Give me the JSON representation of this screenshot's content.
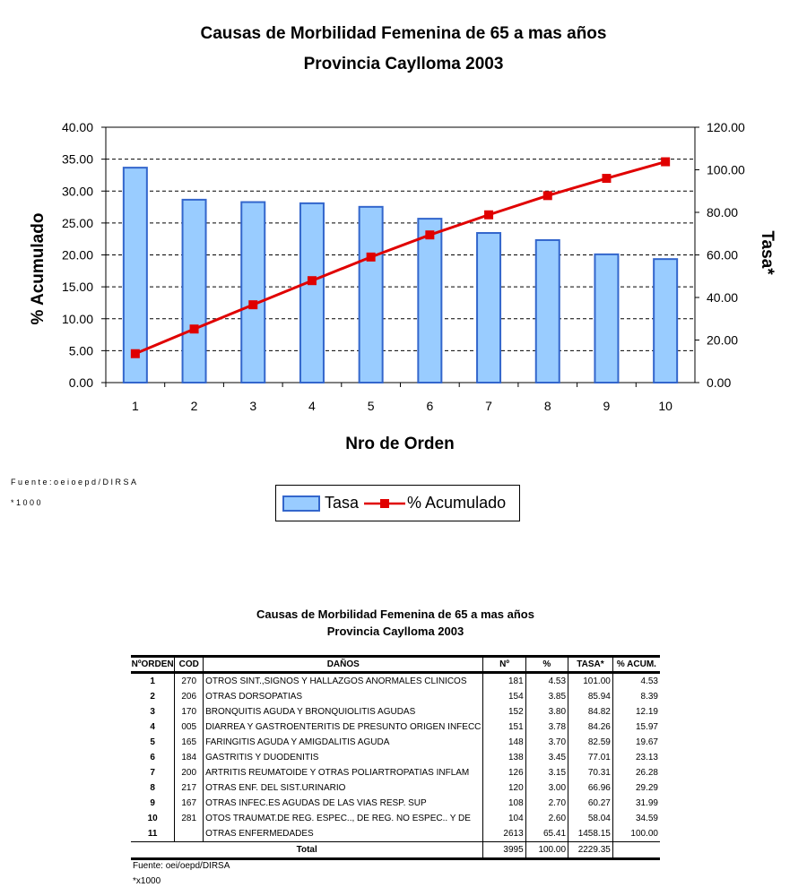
{
  "chart_data": {
    "type": "bar+line",
    "title": "Causas de Morbilidad Femenina de 65 a mas años",
    "subtitle": "Provincia Caylloma 2003",
    "xlabel": "Nro de Orden",
    "ylabel_left": "% Acumulado",
    "ylabel_right": "Tasa*",
    "categories": [
      "1",
      "2",
      "3",
      "4",
      "5",
      "6",
      "7",
      "8",
      "9",
      "10"
    ],
    "ylim_left": [
      0,
      40
    ],
    "yticks_left": [
      "0.00",
      "5.00",
      "10.00",
      "15.00",
      "20.00",
      "25.00",
      "30.00",
      "35.00",
      "40.00"
    ],
    "ylim_right": [
      0,
      120
    ],
    "yticks_right": [
      "0.00",
      "20.00",
      "40.00",
      "60.00",
      "80.00",
      "100.00",
      "120.00"
    ],
    "grid": "dashed horizontal",
    "legend_position": "bottom",
    "series": [
      {
        "name": "Tasa",
        "type": "bar",
        "axis": "right",
        "color": "#99CCFF",
        "edge": "#3366CC",
        "values": [
          101.0,
          85.94,
          84.82,
          84.26,
          82.59,
          77.01,
          70.31,
          66.96,
          60.27,
          58.04
        ]
      },
      {
        "name": "% Acumulado",
        "type": "line",
        "axis": "left",
        "color": "#E00000",
        "values": [
          4.53,
          8.39,
          12.19,
          15.97,
          19.67,
          23.13,
          26.28,
          29.29,
          31.99,
          34.59
        ]
      }
    ],
    "source": "Fuente:oeioepd/DIRSA",
    "note": "*1000"
  },
  "table": {
    "title": "Causas de Morbilidad Femenina de 65 a mas años",
    "subtitle": "Provincia Caylloma 2003",
    "headers": [
      "NºORDEN",
      "COD",
      "DAÑOS",
      "Nº",
      "%",
      "TASA*",
      "% ACUM."
    ],
    "rows": [
      [
        "1",
        "270",
        "OTROS SINT.,SIGNOS Y HALLAZGOS ANORMALES CLINICOS",
        "181",
        "4.53",
        "101.00",
        "4.53"
      ],
      [
        "2",
        "206",
        "OTRAS DORSOPATIAS",
        "154",
        "3.85",
        "85.94",
        "8.39"
      ],
      [
        "3",
        "170",
        "BRONQUITIS AGUDA Y BRONQUIOLITIS AGUDAS",
        "152",
        "3.80",
        "84.82",
        "12.19"
      ],
      [
        "4",
        "005",
        "DIARREA Y GASTROENTERITIS DE PRESUNTO ORIGEN INFECC",
        "151",
        "3.78",
        "84.26",
        "15.97"
      ],
      [
        "5",
        "165",
        "FARINGITIS AGUDA Y AMIGDALITIS AGUDA",
        "148",
        "3.70",
        "82.59",
        "19.67"
      ],
      [
        "6",
        "184",
        "GASTRITIS Y DUODENITIS",
        "138",
        "3.45",
        "77.01",
        "23.13"
      ],
      [
        "7",
        "200",
        "ARTRITIS REUMATOIDE Y OTRAS POLIARTROPATIAS INFLAM",
        "126",
        "3.15",
        "70.31",
        "26.28"
      ],
      [
        "8",
        "217",
        "OTRAS ENF. DEL SIST.URINARIO",
        "120",
        "3.00",
        "66.96",
        "29.29"
      ],
      [
        "9",
        "167",
        "OTRAS INFEC.ES AGUDAS DE LAS VIAS RESP. SUP",
        "108",
        "2.70",
        "60.27",
        "31.99"
      ],
      [
        "10",
        "281",
        "OTOS TRAUMAT.DE REG. ESPEC.., DE REG. NO ESPEC.. Y DE",
        "104",
        "2.60",
        "58.04",
        "34.59"
      ],
      [
        "11",
        "",
        "OTRAS ENFERMEDADES",
        "2613",
        "65.41",
        "1458.15",
        "100.00"
      ]
    ],
    "total": {
      "label": "Total",
      "n": "3995",
      "pct": "100.00",
      "tasa": "2229.35"
    },
    "source": "Fuente: oei/oepd/DIRSA",
    "note": "*x1000"
  }
}
